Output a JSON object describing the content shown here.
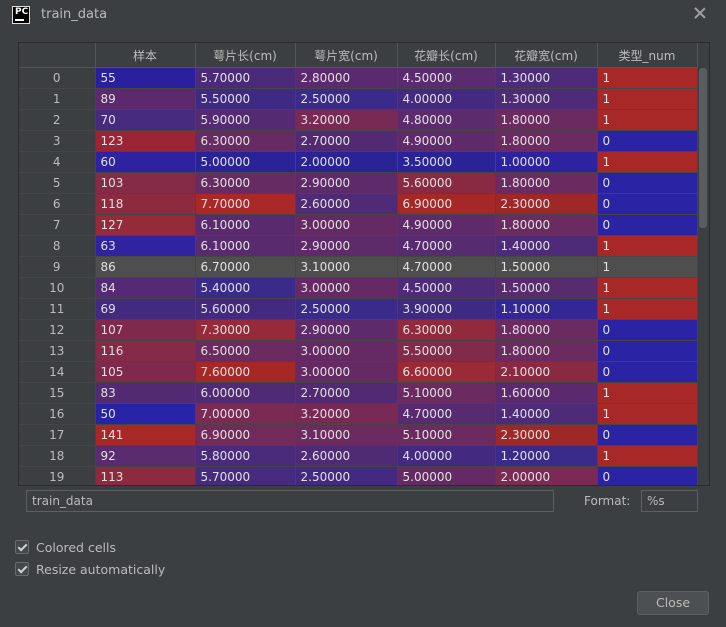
{
  "window": {
    "title": "train_data",
    "logo_text": "PC"
  },
  "table": {
    "columns": [
      "",
      "样本",
      "萼片长(cm)",
      "萼片宽(cm)",
      "花瓣长(cm)",
      "花瓣宽(cm)",
      "类型_num"
    ],
    "rows": [
      [
        "0",
        "55",
        "5.70000",
        "2.80000",
        "4.50000",
        "1.30000",
        "1"
      ],
      [
        "1",
        "89",
        "5.50000",
        "2.50000",
        "4.00000",
        "1.30000",
        "1"
      ],
      [
        "2",
        "70",
        "5.90000",
        "3.20000",
        "4.80000",
        "1.80000",
        "1"
      ],
      [
        "3",
        "123",
        "6.30000",
        "2.70000",
        "4.90000",
        "1.80000",
        "0"
      ],
      [
        "4",
        "60",
        "5.00000",
        "2.00000",
        "3.50000",
        "1.00000",
        "1"
      ],
      [
        "5",
        "103",
        "6.30000",
        "2.90000",
        "5.60000",
        "1.80000",
        "0"
      ],
      [
        "6",
        "118",
        "7.70000",
        "2.60000",
        "6.90000",
        "2.30000",
        "0"
      ],
      [
        "7",
        "127",
        "6.10000",
        "3.00000",
        "4.90000",
        "1.80000",
        "0"
      ],
      [
        "8",
        "63",
        "6.10000",
        "2.90000",
        "4.70000",
        "1.40000",
        "1"
      ],
      [
        "9",
        "86",
        "6.70000",
        "3.10000",
        "4.70000",
        "1.50000",
        "1"
      ],
      [
        "10",
        "84",
        "5.40000",
        "3.00000",
        "4.50000",
        "1.50000",
        "1"
      ],
      [
        "11",
        "69",
        "5.60000",
        "2.50000",
        "3.90000",
        "1.10000",
        "1"
      ],
      [
        "12",
        "107",
        "7.30000",
        "2.90000",
        "6.30000",
        "1.80000",
        "0"
      ],
      [
        "13",
        "116",
        "6.50000",
        "3.00000",
        "5.50000",
        "1.80000",
        "0"
      ],
      [
        "14",
        "105",
        "7.60000",
        "3.00000",
        "6.60000",
        "2.10000",
        "0"
      ],
      [
        "15",
        "83",
        "6.00000",
        "2.70000",
        "5.10000",
        "1.60000",
        "1"
      ],
      [
        "16",
        "50",
        "7.00000",
        "3.20000",
        "4.70000",
        "1.40000",
        "1"
      ],
      [
        "17",
        "141",
        "6.90000",
        "3.10000",
        "5.10000",
        "2.30000",
        "0"
      ],
      [
        "18",
        "92",
        "5.80000",
        "2.60000",
        "4.00000",
        "1.20000",
        "1"
      ],
      [
        "19",
        "113",
        "5.70000",
        "2.50000",
        "5.00000",
        "2.00000",
        "0"
      ]
    ],
    "cell_colors": [
      [
        "#2a1f9c",
        "#4b2a7a",
        "#5b2a6e",
        "#5a2b6f",
        "#4d2b78",
        "#a82828"
      ],
      [
        "#5c2a6c",
        "#3f2a83",
        "#3a2a89",
        "#432a80",
        "#4d2b78",
        "#a82828"
      ],
      [
        "#452a7e",
        "#542a72",
        "#782a55",
        "#5c2b6d",
        "#6b2a60",
        "#a82828"
      ],
      [
        "#9c2535",
        "#662b63",
        "#522a73",
        "#5f2a6a",
        "#6b2a60",
        "#2a23a4"
      ],
      [
        "#2d23a0",
        "#2a2398",
        "#2a2396",
        "#2a2398",
        "#2d23a0",
        "#a82828"
      ],
      [
        "#852a47",
        "#662b63",
        "#5f2a6a",
        "#8a2a42",
        "#6b2a60",
        "#2a23a4"
      ],
      [
        "#8c2a40",
        "#aa2828",
        "#4f2a75",
        "#a52827",
        "#9e2828",
        "#2a23a4"
      ],
      [
        "#952a3a",
        "#592b6e",
        "#652a64",
        "#5f2a6a",
        "#6b2a60",
        "#2a23a4"
      ],
      [
        "#2e24a0",
        "#592b6e",
        "#5f2a6a",
        "#572b70",
        "#4d2b78",
        "#a82828"
      ],
      [
        "#4e4e4e",
        "#4e4e4e",
        "#4e4e4e",
        "#4e4e4e",
        "#4e4e4e",
        "#4e4e4e"
      ],
      [
        "#532a73",
        "#3a2a89",
        "#652a64",
        "#4d2b78",
        "#582b6f",
        "#a82828"
      ],
      [
        "#422a81",
        "#432a80",
        "#3a2a89",
        "#3f2a83",
        "#332796",
        "#a82828"
      ],
      [
        "#7f2a4c",
        "#952a3a",
        "#5f2a6a",
        "#922a3d",
        "#6b2a60",
        "#2a23a4"
      ],
      [
        "#852a47",
        "#6b2a60",
        "#652a64",
        "#822a49",
        "#6b2a60",
        "#2a23a4"
      ],
      [
        "#7f2a4c",
        "#a52827",
        "#652a64",
        "#992a36",
        "#8a2a42",
        "#2a23a4"
      ],
      [
        "#522a73",
        "#502a74",
        "#522a73",
        "#6b2a60",
        "#5b2a6e",
        "#a82828"
      ],
      [
        "#2623a6",
        "#7a2a53",
        "#782a55",
        "#572b70",
        "#4d2b78",
        "#a82828"
      ],
      [
        "#a82828",
        "#722a5a",
        "#6d2a5e",
        "#6b2a60",
        "#9e2828",
        "#2a23a4"
      ],
      [
        "#5a2b6f",
        "#4a2a7a",
        "#4f2a75",
        "#432a80",
        "#3a2a89",
        "#a82828"
      ],
      [
        "#8e2a3f",
        "#452a7e",
        "#432a80",
        "#652a64",
        "#7a2a53",
        "#2a23a4"
      ]
    ]
  },
  "footer": {
    "name_value": "train_data",
    "format_label": "Format:",
    "format_value": "%s",
    "colored_cells_label": "Colored cells",
    "colored_cells_checked": true,
    "resize_label": "Resize automatically",
    "resize_checked": true,
    "close_label": "Close"
  }
}
